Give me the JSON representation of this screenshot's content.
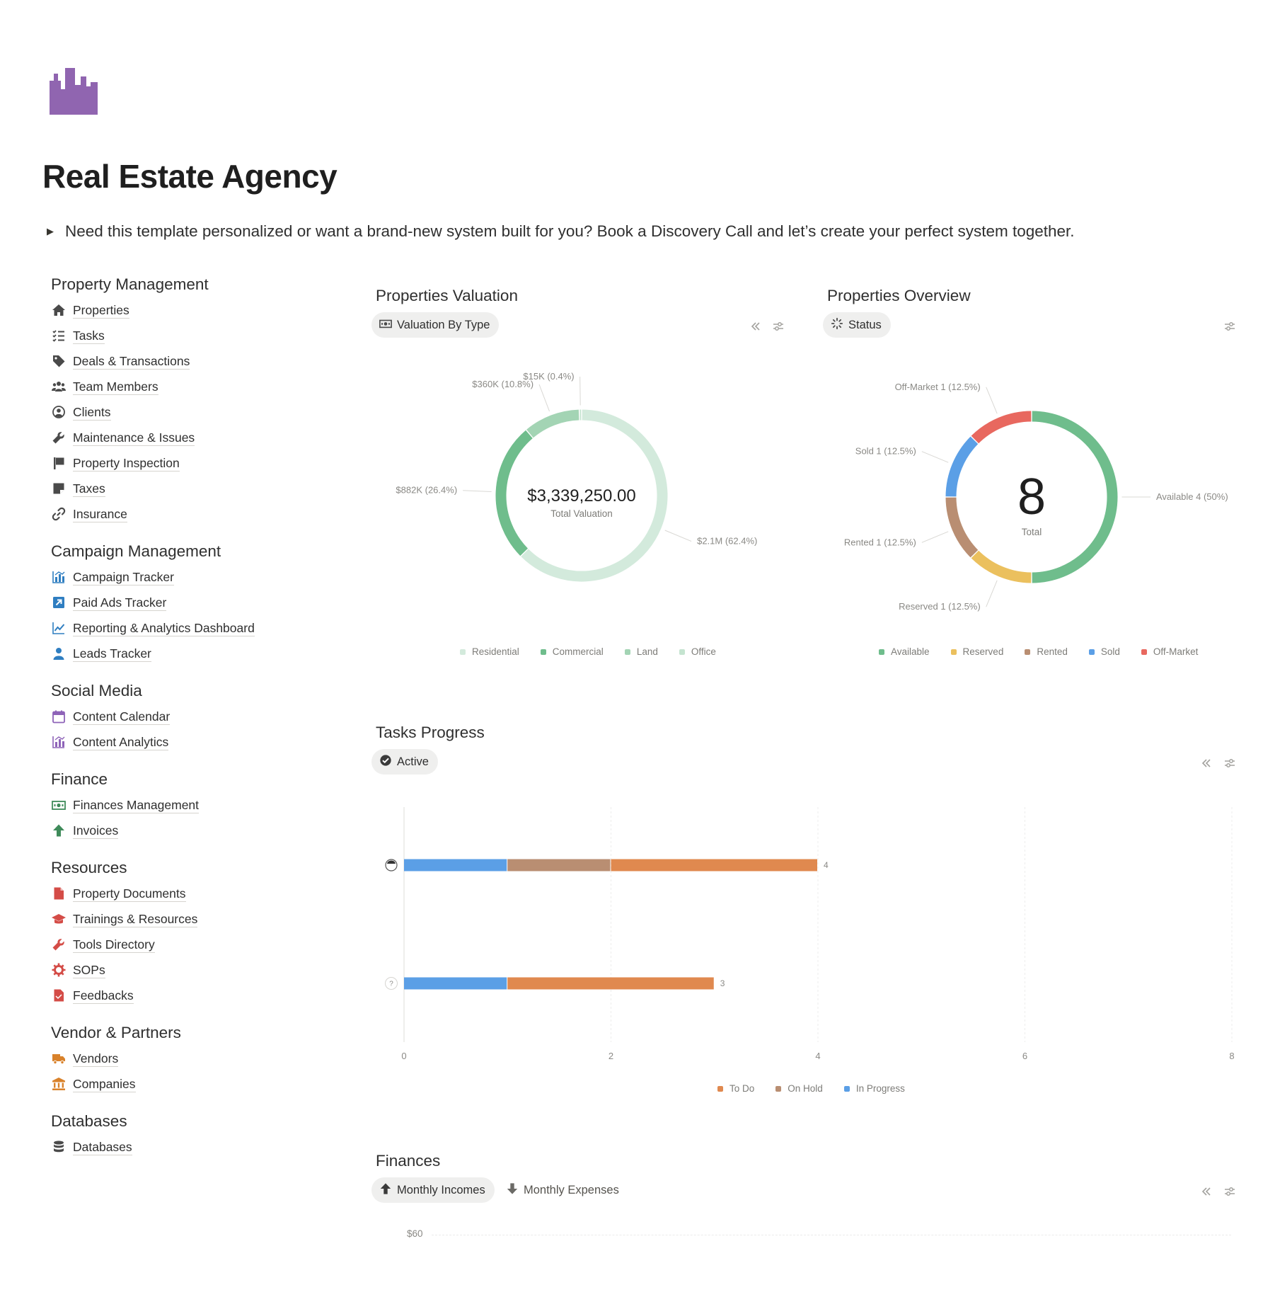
{
  "page": {
    "title": "Real Estate Agency",
    "callout": "Need this template personalized or want a brand-new system built for you? Book a Discovery Call and let’s create your perfect system together."
  },
  "sidebar": {
    "sections": [
      {
        "heading": "Property Management",
        "items": [
          {
            "label": "Properties",
            "icon": "house-icon"
          },
          {
            "label": "Tasks",
            "icon": "checklist-icon"
          },
          {
            "label": "Deals & Transactions",
            "icon": "tag-icon"
          },
          {
            "label": "Team Members",
            "icon": "people-icon"
          },
          {
            "label": "Clients",
            "icon": "person-circle-icon"
          },
          {
            "label": "Maintenance & Issues",
            "icon": "wrench-icon"
          },
          {
            "label": "Property Inspection",
            "icon": "flag-icon"
          },
          {
            "label": "Taxes",
            "icon": "note-icon"
          },
          {
            "label": "Insurance",
            "icon": "link-icon"
          }
        ]
      },
      {
        "heading": "Campaign Management",
        "items": [
          {
            "label": "Campaign Tracker",
            "icon": "chart-bar-icon"
          },
          {
            "label": "Paid Ads Tracker",
            "icon": "arrow-square-icon"
          },
          {
            "label": "Reporting & Analytics Dashboard",
            "icon": "line-chart-icon"
          },
          {
            "label": "Leads Tracker",
            "icon": "person-icon"
          }
        ]
      },
      {
        "heading": "Social Media",
        "items": [
          {
            "label": "Content Calendar",
            "icon": "calendar-icon"
          },
          {
            "label": "Content Analytics",
            "icon": "analytics-icon"
          }
        ]
      },
      {
        "heading": "Finance",
        "items": [
          {
            "label": "Finances Management",
            "icon": "banknote-icon"
          },
          {
            "label": "Invoices",
            "icon": "arrow-up-icon"
          }
        ]
      },
      {
        "heading": "Resources",
        "items": [
          {
            "label": "Property Documents",
            "icon": "document-icon"
          },
          {
            "label": "Trainings & Resources",
            "icon": "graduation-cap-icon"
          },
          {
            "label": "Tools Directory",
            "icon": "tool-icon"
          },
          {
            "label": "SOPs",
            "icon": "gear-icon"
          },
          {
            "label": "Feedbacks",
            "icon": "feedback-doc-icon"
          }
        ]
      },
      {
        "heading": "Vendor & Partners",
        "items": [
          {
            "label": "Vendors",
            "icon": "truck-icon"
          },
          {
            "label": "Companies",
            "icon": "bank-icon"
          }
        ]
      },
      {
        "heading": "Databases",
        "items": [
          {
            "label": "Databases",
            "icon": "database-icon"
          }
        ]
      }
    ]
  },
  "icon_colors": {
    "house-icon": "#4a4a4a",
    "checklist-icon": "#4a4a4a",
    "tag-icon": "#4a4a4a",
    "people-icon": "#4a4a4a",
    "person-circle-icon": "#4a4a4a",
    "wrench-icon": "#4a4a4a",
    "flag-icon": "#4a4a4a",
    "note-icon": "#4a4a4a",
    "link-icon": "#4a4a4a",
    "chart-bar-icon": "#2f7ec1",
    "arrow-square-icon": "#2f7ec1",
    "line-chart-icon": "#2f7ec1",
    "person-icon": "#2f7ec1",
    "calendar-icon": "#8e63b8",
    "analytics-icon": "#8e63b8",
    "banknote-icon": "#3f8b5a",
    "arrow-up-icon": "#3f8b5a",
    "document-icon": "#d44c47",
    "graduation-cap-icon": "#d44c47",
    "tool-icon": "#d44c47",
    "gear-icon": "#d44c47",
    "feedback-doc-icon": "#d44c47",
    "truck-icon": "#d9822b",
    "bank-icon": "#d9822b",
    "database-icon": "#4a4a4a"
  },
  "valuation": {
    "title": "Properties Valuation",
    "view_label": "Valuation By Type",
    "view_icon": "banknote-icon"
  },
  "overview": {
    "title": "Properties Overview",
    "view_label": "Status",
    "view_icon": "loading-icon"
  },
  "tasks": {
    "title": "Tasks Progress",
    "view_label": "Active",
    "view_icon": "check-circle-icon"
  },
  "finances": {
    "title": "Finances",
    "tabs": [
      {
        "label": "Monthly Incomes",
        "icon": "arrow-up-icon",
        "active": true
      },
      {
        "label": "Monthly Expenses",
        "icon": "arrow-down-icon",
        "active": false
      }
    ],
    "y_tick_top": "$60"
  },
  "chart_data": [
    {
      "type": "pie",
      "variant": "donut",
      "center_value": "$3,339,250.00",
      "center_label": "Total Valuation",
      "categories": [
        "Residential",
        "Commercial",
        "Land",
        "Office"
      ],
      "values": [
        2100000,
        882000,
        360000,
        15000
      ],
      "percents": [
        62.4,
        26.4,
        10.8,
        0.4
      ],
      "data_labels": [
        "$2.1M (62.4%)",
        "$882K (26.4%)",
        "$360K (10.8%)",
        "$15K (0.4%)"
      ],
      "colors": [
        "#d3eadc",
        "#6fbd8c",
        "#a3d4b4",
        "#c5e4d0"
      ],
      "legend": "bottom"
    },
    {
      "type": "pie",
      "variant": "donut",
      "center_value": "8",
      "center_label": "Total",
      "categories": [
        "Available",
        "Reserved",
        "Rented",
        "Sold",
        "Off-Market"
      ],
      "values": [
        4,
        1,
        1,
        1,
        1
      ],
      "percents": [
        50,
        12.5,
        12.5,
        12.5,
        12.5
      ],
      "data_labels": [
        "Available  4 (50%)",
        "Reserved  1 (12.5%)",
        "Rented  1 (12.5%)",
        "Sold  1 (12.5%)",
        "Off-Market  1 (12.5%)"
      ],
      "colors": [
        "#6fbd8c",
        "#ebc05e",
        "#b98e72",
        "#5b9fe6",
        "#e8685f"
      ],
      "legend": "bottom"
    },
    {
      "type": "bar",
      "orientation": "horizontal",
      "stacked": true,
      "categories": [
        "assignee-avatar",
        "unassigned"
      ],
      "series": [
        {
          "name": "In Progress",
          "values": [
            1,
            1
          ],
          "color": "#5b9fe6"
        },
        {
          "name": "On Hold",
          "values": [
            1,
            0
          ],
          "color": "#b98e72"
        },
        {
          "name": "To Do",
          "values": [
            2,
            2
          ],
          "color": "#e0894f"
        }
      ],
      "totals": [
        "4",
        "3"
      ],
      "xlim": [
        0,
        8
      ],
      "x_ticks": [
        "0",
        "2",
        "4",
        "6",
        "8"
      ],
      "grid": true,
      "legend_order": [
        "To Do",
        "On Hold",
        "In Progress"
      ],
      "legend": "bottom"
    }
  ]
}
